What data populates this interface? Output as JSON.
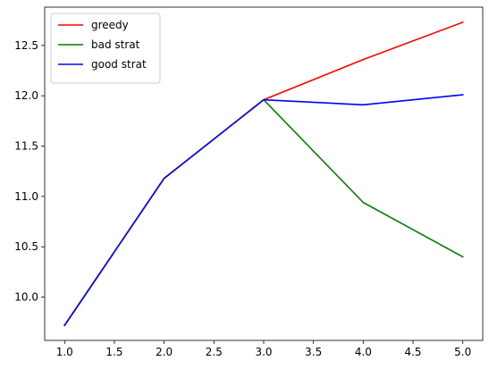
{
  "chart_data": {
    "type": "line",
    "title": "",
    "xlabel": "",
    "ylabel": "",
    "xlim": [
      0.8,
      5.2
    ],
    "ylim": [
      9.57,
      12.88
    ],
    "xticks": [
      "1.0",
      "1.5",
      "2.0",
      "2.5",
      "3.0",
      "3.5",
      "4.0",
      "4.5",
      "5.0"
    ],
    "yticks": [
      "10.0",
      "10.5",
      "11.0",
      "11.5",
      "12.0",
      "12.5"
    ],
    "grid": false,
    "legend_position": "upper-left",
    "series": [
      {
        "name": "greedy",
        "color": "#ff0000",
        "x": [
          1,
          2,
          3,
          4,
          5
        ],
        "y": [
          9.72,
          11.18,
          11.96,
          12.36,
          12.73
        ]
      },
      {
        "name": "bad strat",
        "color": "#008000",
        "x": [
          1,
          2,
          3,
          4,
          5
        ],
        "y": [
          9.72,
          11.18,
          11.96,
          10.94,
          10.4
        ]
      },
      {
        "name": "good strat",
        "color": "#0000ff",
        "x": [
          1,
          2,
          3,
          4,
          5
        ],
        "y": [
          9.72,
          11.18,
          11.96,
          11.91,
          12.01
        ]
      }
    ]
  }
}
